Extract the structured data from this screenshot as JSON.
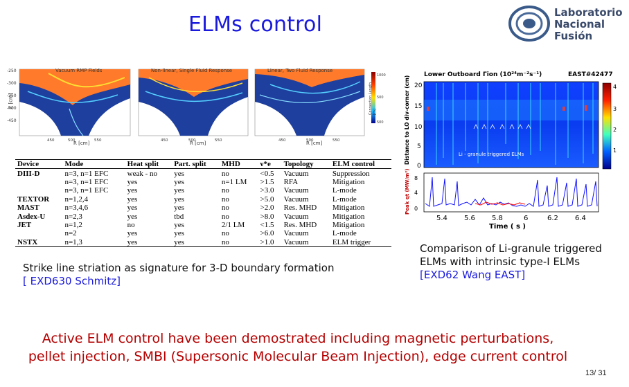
{
  "title": "ELMs control",
  "logo": {
    "line1": "Laboratorio",
    "line2": "Nacional",
    "line3": "Fusión"
  },
  "left_figure": {
    "panels": [
      {
        "label": "Vacuum RMP Fields"
      },
      {
        "label": "Non-linear, Single Fluid Response"
      },
      {
        "label": "Linear, Two Fluid Response"
      }
    ],
    "y_axis": "Z [cm]",
    "x_axis": "R [cm]",
    "colorbar_label": "Connection Length [m]"
  },
  "table": {
    "headers": [
      "Device",
      "Mode",
      "Heat split",
      "Part. split",
      "MHD",
      "ν*e",
      "Topology",
      "ELM control"
    ],
    "rows": [
      [
        "DIII-D",
        "n=3, n=1 EFC",
        "weak - no",
        "yes",
        "no",
        "<0.5",
        "Vacuum",
        "Suppression"
      ],
      [
        "",
        "n=3, n=1 EFC",
        "yes",
        "yes",
        "n=1 LM",
        ">1.5",
        "RFA",
        "Mitigation"
      ],
      [
        "",
        "n=3, n=1 EFC",
        "yes",
        "yes",
        "no",
        ">3.0",
        "Vacuum",
        "L-mode"
      ],
      [
        "TEXTOR",
        "n=1,2,4",
        "yes",
        "yes",
        "no",
        ">5.0",
        "Vacuum",
        "L-mode"
      ],
      [
        "MAST",
        "n=3,4,6",
        "yes",
        "yes",
        "no",
        ">2.0",
        "Res. MHD",
        "Mitigation"
      ],
      [
        "Asdex-U",
        "n=2,3",
        "yes",
        "tbd",
        "no",
        ">8.0",
        "Vacuum",
        "Mitigation"
      ],
      [
        "JET",
        "n=1,2",
        "no",
        "yes",
        "2/1 LM",
        "<1.5",
        "Res. MHD",
        "Mitigation"
      ],
      [
        "",
        "n=2",
        "yes",
        "yes",
        "no",
        ">6.0",
        "Vacuum",
        "L-mode"
      ],
      [
        "NSTX",
        "n=1,3",
        "yes",
        "yes",
        "no",
        ">1.0",
        "Vacuum",
        "ELM trigger"
      ]
    ]
  },
  "right_figure": {
    "title": "Lower Outboard Γion (10²⁴m⁻²s⁻¹)",
    "shot": "EAST#42477",
    "y_axis_top": "Distance to LO div-corner (cm)",
    "y_axis_bottom": "Peak qt (MW/m²)",
    "x_axis": "Time ( s )",
    "annotation": "Li - granule triggered ELMs",
    "x_ticks": [
      "5.4",
      "5.6",
      "5.8",
      "6",
      "6.2",
      "6.4"
    ],
    "y_ticks": [
      "20",
      "15",
      "10",
      "5",
      "0"
    ],
    "bottom_y_ticks": [
      "8",
      "4",
      "0"
    ],
    "colorbar_ticks": [
      "4",
      "3",
      "2",
      "1"
    ]
  },
  "caption_left": {
    "line1": "Strike line striation as signature for 3-D boundary formation",
    "line2": "[ EXD630 Schmitz]"
  },
  "caption_right": {
    "line1": "Comparison of Li-granule triggered",
    "line2": "ELMs with intrinsic type-I ELMs",
    "line3": "[EXD62 Wang EAST]"
  },
  "bottom_text": {
    "line1": "Active ELM control have been demostrated including magnetic perturbations,",
    "line2": "pellet injection, SMBI (Supersonic Molecular Beam Injection), edge current control"
  },
  "page_number": "13/ 31",
  "colors": {
    "title": "#1a1adc",
    "bottom_text": "#b40000",
    "caption_ref": "#1a1adc"
  }
}
